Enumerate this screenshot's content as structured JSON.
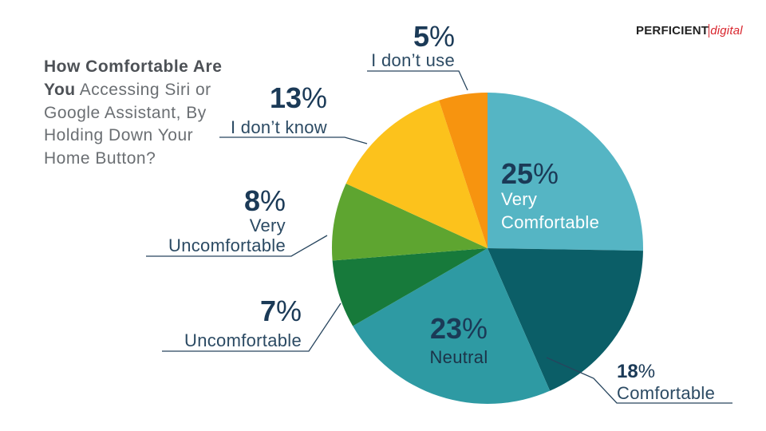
{
  "brand": {
    "name_part1": "PERFICIENT",
    "name_part2": "digital",
    "accent_color": "#d9262e"
  },
  "title": {
    "bold": "How Comfortable Are You",
    "regular": "Accessing Siri or Google Assistant, By Holding Down Your Home Button?"
  },
  "chart_data": {
    "type": "pie",
    "title": "How Comfortable Are You Accessing Siri or Google Assistant, By Holding Down Your Home Button?",
    "slices": [
      {
        "label": "Very Comfortable",
        "value": 25,
        "display": "25%",
        "color": "#55b5c4"
      },
      {
        "label": "Comfortable",
        "value": 18,
        "display": "18%",
        "color": "#0b5e67"
      },
      {
        "label": "Neutral",
        "value": 23,
        "display": "23%",
        "color": "#2e9aa3"
      },
      {
        "label": "Uncomfortable",
        "value": 7,
        "display": "7%",
        "color": "#177a3b"
      },
      {
        "label": "Very Uncomfortable",
        "value": 8,
        "display": "8%",
        "color": "#5ea530"
      },
      {
        "label": "I don’t know",
        "value": 13,
        "display": "13%",
        "color": "#fcc21c"
      },
      {
        "label": "I don’t use",
        "value": 5,
        "display": "5%",
        "color": "#f7940f"
      }
    ]
  }
}
